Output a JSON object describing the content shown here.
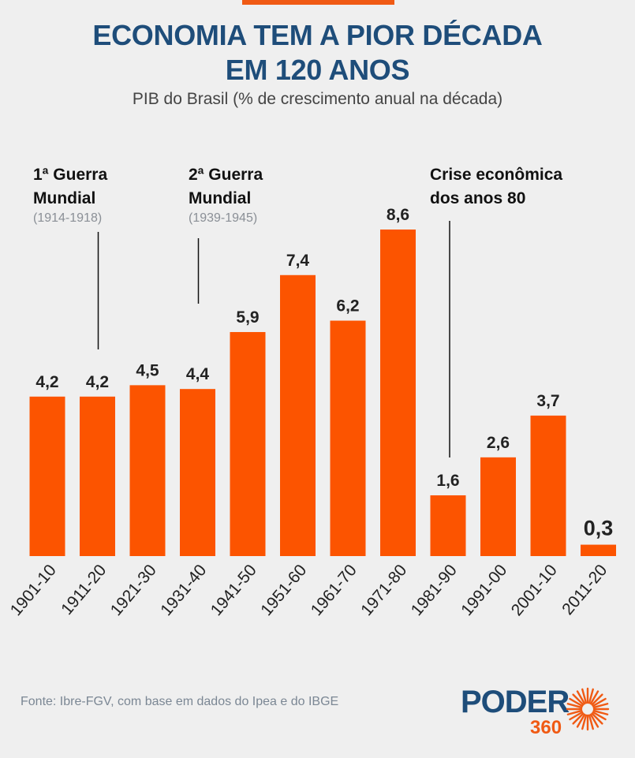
{
  "header": {
    "title_line1": "ECONOMIA TEM A PIOR DÉCADA",
    "title_line2": "EM 120 ANOS",
    "subtitle": "PIB do Brasil (% de crescimento anual na década)"
  },
  "chart_data": {
    "type": "bar",
    "title": "ECONOMIA TEM A PIOR DÉCADA EM 120 ANOS",
    "subtitle": "PIB do Brasil (% de crescimento anual na década)",
    "categories": [
      "1901-10",
      "1911-20",
      "1921-30",
      "1931-40",
      "1941-50",
      "1951-60",
      "1961-70",
      "1971-80",
      "1981-90",
      "1991-00",
      "2001-10",
      "2011-20"
    ],
    "values": [
      4.2,
      4.2,
      4.5,
      4.4,
      5.9,
      7.4,
      6.2,
      8.6,
      1.6,
      2.6,
      3.7,
      0.3
    ],
    "value_labels": [
      "4,2",
      "4,2",
      "4,5",
      "4,4",
      "5,9",
      "7,4",
      "6,2",
      "8,6",
      "1,6",
      "2,6",
      "3,7",
      "0,3"
    ],
    "bar_color": "#fc5400",
    "ylim": [
      0,
      8.6
    ],
    "grid": false,
    "annotations": [
      {
        "category": "1911-20",
        "title_line1": "1ª Guerra",
        "title_line2": "Mundial",
        "years": "(1914-1918)"
      },
      {
        "category": "1931-40",
        "title_line1": "2ª Guerra",
        "title_line2": "Mundial",
        "years": "(1939-1945)"
      },
      {
        "category": "1981-90",
        "title_line1": "Crise econômica",
        "title_line2": "dos anos 80",
        "years": ""
      }
    ]
  },
  "footer": {
    "source": "Fonte: Ibre-FGV, com base em dados do Ipea e do IBGE",
    "logo_word": "PODER",
    "logo_number": "360"
  },
  "colors": {
    "title": "#1e4d7a",
    "accent": "#f05a14",
    "bar": "#fc5400",
    "background": "#efefef"
  }
}
